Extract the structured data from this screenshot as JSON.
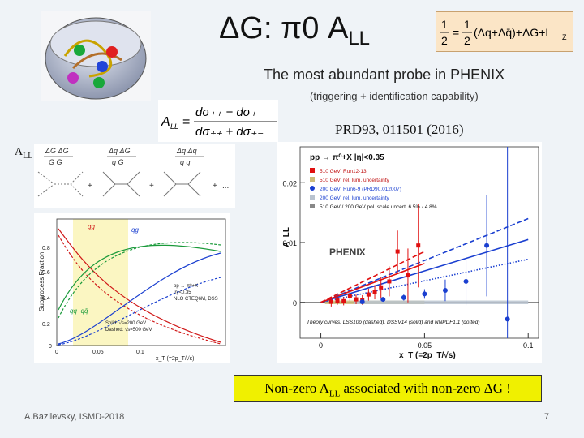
{
  "slide": {
    "title_main": "ΔG: π0 A",
    "title_sub": "LL",
    "subtitle": "The most abundant probe in PHENIX",
    "subnote": "(triggering + identification capability)",
    "reference": "PRD93, 011501 (2016)",
    "spin_equation": "1/2 = 1/2(Δq + Δq̄) + ΔG + L_z",
    "all_definition": "A_LL = (dσ++ − dσ+−)/(dσ++ + dσ+−)",
    "all_approx_label": "A",
    "all_approx_sub": "LL",
    "all_approx_tilde": "~",
    "conclusion_pre": "Non-zero A",
    "conclusion_sub": "LL",
    "conclusion_post": " associated with non-zero ΔG !",
    "footer_author": "A.Bazilevsky, ISMD-2018",
    "page_number": "7"
  },
  "diagrams": {
    "terms": [
      "ΔG ΔG / G G",
      "Δq ΔG / q G",
      "Δq Δq / q q"
    ],
    "ellipsis": "..."
  },
  "subprocess_plot": {
    "ylabel": "Subprocess Fraction",
    "xlabel": "x_T (=2p_T/√s)",
    "yticks": [
      "0.8",
      "0.6",
      "0.4",
      "0.2",
      "0"
    ],
    "xticks": [
      "0",
      "0.05",
      "0.1"
    ],
    "curve_labels": [
      "gg",
      "qg",
      "qq+qq̄"
    ],
    "legend_lines": [
      "pp → π⁰+X",
      "|η|<0.35",
      "NLO CTEQ6M, DSS"
    ],
    "style_legend": [
      "Solid: √s=200 GeV",
      "Dashed: √s=500 GeV"
    ]
  },
  "chart_data": {
    "type": "scatter",
    "title": "pp → π⁰+X |η|<0.35",
    "xlabel": "x_T (=2p_T/√s)",
    "ylabel": "A_LL",
    "xlim": [
      -0.01,
      0.105
    ],
    "ylim": [
      -0.006,
      0.026
    ],
    "xticks": [
      "0",
      "0.05",
      "0.1"
    ],
    "yticks": [
      "0",
      "0.01",
      "0.02"
    ],
    "watermark": "PHENIX",
    "legend": [
      "510 GeV: Run12-13",
      "510 GeV: rel. lum. uncertainty",
      "200 GeV: Run6-9 (PRD90,012007)",
      "200 GeV: rel. lum. uncertainty",
      "510 GeV / 200 GeV pol. scale uncert. 6.5% / 4.8%"
    ],
    "theory_caption": "Theory curves: LSS10p (dashed), DSSV14 (solid) and NNPDF1.1 (dotted)",
    "series": [
      {
        "name": "510 GeV: Run12-13",
        "color": "#e01010",
        "x": [
          0.005,
          0.008,
          0.011,
          0.014,
          0.017,
          0.02,
          0.023,
          0.026,
          0.029,
          0.033,
          0.037,
          0.042,
          0.047
        ],
        "y": [
          0.0001,
          0.0003,
          0.0002,
          0.001,
          0.0005,
          0.0004,
          0.0013,
          0.0017,
          0.0025,
          0.0035,
          0.0085,
          0.0045,
          0.0095
        ],
        "err": [
          0.0008,
          0.0007,
          0.0007,
          0.0008,
          0.0008,
          0.0008,
          0.001,
          0.0012,
          0.0018,
          0.0025,
          0.0035,
          0.0045,
          0.007
        ]
      },
      {
        "name": "200 GeV: Run6-9 (PRD90,012007)",
        "color": "#1a3fd0",
        "x": [
          0.02,
          0.03,
          0.04,
          0.05,
          0.06,
          0.07,
          0.08,
          0.09
        ],
        "y": [
          0.0001,
          0.0005,
          0.0008,
          0.0014,
          0.002,
          0.0035,
          0.0095,
          -0.0028
        ],
        "err": [
          0.0002,
          0.0003,
          0.0005,
          0.0008,
          0.0018,
          0.004,
          0.0085,
          0.029
        ]
      }
    ],
    "theory": [
      {
        "name": "LSS10p",
        "style": "dashed",
        "color": "#1a3fd0",
        "x": [
          0,
          0.1
        ],
        "y": [
          0,
          0.014
        ]
      },
      {
        "name": "DSSV14",
        "style": "solid",
        "color": "#1a3fd0",
        "x": [
          0,
          0.1
        ],
        "y": [
          0,
          0.0105
        ]
      },
      {
        "name": "NNPDF1.1",
        "style": "dotted",
        "color": "#1a3fd0",
        "x": [
          0,
          0.1
        ],
        "y": [
          0,
          0.0072
        ]
      },
      {
        "name": "LSS10p 510",
        "style": "dashed",
        "color": "#e01010",
        "x": [
          0,
          0.05
        ],
        "y": [
          0,
          0.0085
        ]
      },
      {
        "name": "DSSV14 510",
        "style": "solid",
        "color": "#e01010",
        "x": [
          0,
          0.05
        ],
        "y": [
          0,
          0.0065
        ]
      }
    ],
    "bands": [
      {
        "name": "510 GeV: rel. lum. uncertainty",
        "color": "#cdbc7a",
        "x": [
          0.002,
          0.05
        ],
        "half_height": 0.0003
      },
      {
        "name": "200 GeV: rel. lum. uncertainty",
        "color": "#b9c3cf",
        "x": [
          0.016,
          0.1
        ],
        "half_height": 0.0003
      }
    ]
  }
}
